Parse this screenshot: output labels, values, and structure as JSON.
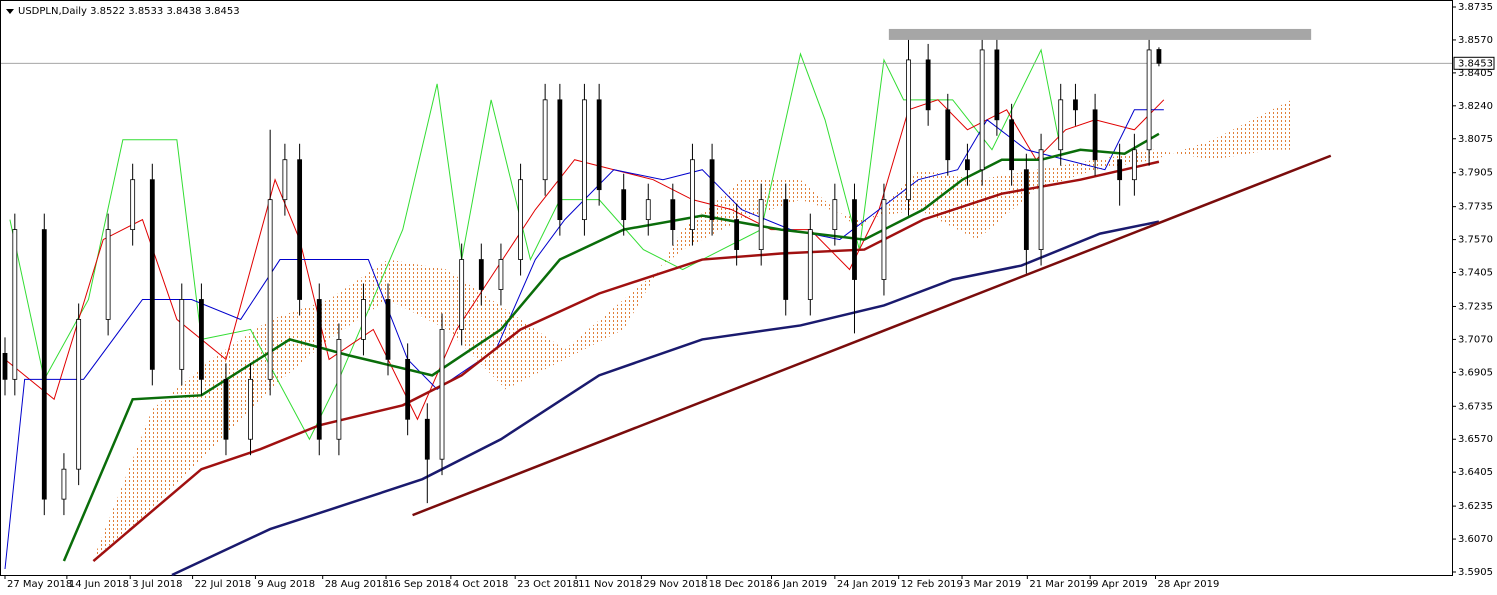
{
  "chart_data": {
    "type": "candlestick",
    "title": "USDPLN,Daily  3.8522 3.8533 3.8438 3.8453",
    "current_price": 3.8453,
    "ylim": [
      3.589,
      3.8765
    ],
    "xlim": [
      -0.5,
      295
    ],
    "yticks": [
      3.8735,
      {
        "value": 3.857,
        "label": "3.8570"
      },
      3.8405,
      {
        "value": 3.824,
        "label": "3.8240"
      },
      3.8075,
      3.7905,
      3.7735,
      {
        "value": 3.757,
        "label": "3.7570"
      },
      3.7405,
      3.7235,
      {
        "value": 3.707,
        "label": "3.7070"
      },
      3.6905,
      3.6735,
      {
        "value": 3.657,
        "label": "3.6570"
      },
      3.6405,
      3.6235,
      {
        "value": 3.607,
        "label": "3.6070"
      },
      3.5905
    ],
    "xticks": [
      {
        "value": 0,
        "label": "27 May 2018"
      },
      {
        "value": 12.6,
        "label": "14 Jun 2018"
      },
      {
        "value": 25.5,
        "label": "3 Jul 2018"
      },
      {
        "value": 38.2,
        "label": "22 Jul 2018"
      },
      {
        "value": 51,
        "label": "9 Aug 2018"
      },
      {
        "value": 64.7,
        "label": "28 Aug 2018"
      },
      {
        "value": 77.6,
        "label": "16 Sep 2018"
      },
      {
        "value": 90.8,
        "label": "4 Oct 2018"
      },
      {
        "value": 103.9,
        "label": "23 Oct 2018"
      },
      {
        "value": 116.3,
        "label": "11 Nov 2018"
      },
      {
        "value": 129.6,
        "label": "29 Nov 2018"
      },
      {
        "value": 142.9,
        "label": "18 Dec 2018"
      },
      {
        "value": 156.1,
        "label": "6 Jan 2019"
      },
      {
        "value": 169,
        "label": "24 Jan 2019"
      },
      {
        "value": 182,
        "label": "12 Feb 2019"
      },
      {
        "value": 194.9,
        "label": "3 Mar 2019"
      },
      {
        "value": 208.2,
        "label": "21 Mar 2019"
      },
      {
        "value": 221,
        "label": "9 Apr 2019"
      },
      {
        "value": 234.3,
        "label": "28 Apr 2019"
      }
    ],
    "x": [
      0,
      2,
      8,
      12,
      15,
      21,
      26,
      30,
      36,
      40,
      45,
      50,
      54,
      57,
      60,
      64,
      68,
      73,
      78,
      82,
      86,
      89,
      93,
      97,
      101,
      105,
      110,
      113,
      118,
      121,
      126,
      131,
      136,
      140,
      144,
      149,
      154,
      159,
      164,
      169,
      173,
      179,
      184,
      188,
      192,
      196,
      199,
      202,
      205,
      208,
      211,
      215,
      218,
      222,
      227,
      230,
      233,
      235
    ],
    "open": [
      3.7,
      3.687,
      3.762,
      3.627,
      3.642,
      3.717,
      3.762,
      3.787,
      3.692,
      3.727,
      3.687,
      3.657,
      3.687,
      3.777,
      3.797,
      3.727,
      3.657,
      3.707,
      3.727,
      3.697,
      3.667,
      3.647,
      3.712,
      3.747,
      3.732,
      3.747,
      3.787,
      3.827,
      3.767,
      3.827,
      3.782,
      3.767,
      3.777,
      3.762,
      3.797,
      3.767,
      3.752,
      3.777,
      3.727,
      3.762,
      3.777,
      3.737,
      3.777,
      3.847,
      3.822,
      3.797,
      3.792,
      3.852,
      3.817,
      3.792,
      3.752,
      3.802,
      3.827,
      3.822,
      3.797,
      3.787,
      3.802,
      3.8522
    ],
    "high": [
      3.708,
      3.77,
      3.77,
      3.65,
      3.725,
      3.77,
      3.795,
      3.795,
      3.735,
      3.735,
      3.695,
      3.695,
      3.812,
      3.805,
      3.805,
      3.735,
      3.715,
      3.735,
      3.735,
      3.705,
      3.675,
      3.72,
      3.755,
      3.755,
      3.755,
      3.795,
      3.835,
      3.835,
      3.835,
      3.835,
      3.79,
      3.785,
      3.785,
      3.805,
      3.805,
      3.775,
      3.785,
      3.785,
      3.77,
      3.785,
      3.785,
      3.785,
      3.858,
      3.855,
      3.83,
      3.805,
      3.858,
      3.86,
      3.825,
      3.8,
      3.81,
      3.835,
      3.835,
      3.83,
      3.805,
      3.81,
      3.86,
      3.8533
    ],
    "low": [
      3.679,
      3.679,
      3.619,
      3.619,
      3.634,
      3.709,
      3.754,
      3.684,
      3.684,
      3.679,
      3.649,
      3.649,
      3.679,
      3.769,
      3.719,
      3.649,
      3.649,
      3.699,
      3.689,
      3.659,
      3.625,
      3.639,
      3.704,
      3.724,
      3.724,
      3.739,
      3.779,
      3.759,
      3.759,
      3.774,
      3.759,
      3.759,
      3.754,
      3.754,
      3.759,
      3.744,
      3.744,
      3.719,
      3.719,
      3.754,
      3.71,
      3.729,
      3.769,
      3.814,
      3.789,
      3.784,
      3.784,
      3.809,
      3.784,
      3.74,
      3.744,
      3.794,
      3.814,
      3.789,
      3.774,
      3.779,
      3.794,
      3.8438
    ],
    "close": [
      3.687,
      3.762,
      3.627,
      3.642,
      3.717,
      3.762,
      3.787,
      3.692,
      3.727,
      3.687,
      3.657,
      3.687,
      3.777,
      3.797,
      3.727,
      3.657,
      3.707,
      3.727,
      3.697,
      3.667,
      3.647,
      3.712,
      3.747,
      3.732,
      3.747,
      3.787,
      3.827,
      3.767,
      3.827,
      3.782,
      3.767,
      3.777,
      3.762,
      3.797,
      3.767,
      3.752,
      3.777,
      3.727,
      3.762,
      3.777,
      3.737,
      3.777,
      3.847,
      3.822,
      3.797,
      3.792,
      3.852,
      3.817,
      3.792,
      3.752,
      3.802,
      3.827,
      3.822,
      3.797,
      3.787,
      3.802,
      3.852,
      3.8453
    ],
    "cloud": {
      "color": "#e0803a",
      "x": [
        18,
        30,
        42,
        54,
        66,
        78,
        90,
        102,
        114,
        126,
        138,
        150,
        162,
        174,
        186,
        198,
        210,
        222,
        234,
        246,
        258,
        262
      ],
      "a": [
        3.597,
        3.672,
        3.697,
        3.717,
        3.727,
        3.747,
        3.742,
        3.722,
        3.702,
        3.727,
        3.752,
        3.767,
        3.777,
        3.767,
        3.772,
        3.757,
        3.782,
        3.792,
        3.797,
        3.807,
        3.822,
        3.827
      ],
      "b": [
        3.597,
        3.622,
        3.652,
        3.682,
        3.707,
        3.727,
        3.712,
        3.682,
        3.697,
        3.712,
        3.762,
        3.787,
        3.787,
        3.762,
        3.792,
        3.787,
        3.792,
        3.797,
        3.802,
        3.797,
        3.802,
        3.802
      ]
    },
    "series": [
      {
        "color": "#33dd33",
        "width": 1,
        "x": [
          1,
          8,
          17,
          24,
          35,
          40,
          50,
          62,
          68,
          81,
          88,
          93,
          99,
          107,
          113,
          121,
          130,
          138,
          146,
          154,
          162,
          167,
          174,
          179,
          183,
          193,
          201,
          211,
          215
        ],
        "values": [
          3.767,
          3.687,
          3.727,
          3.807,
          3.807,
          3.707,
          3.712,
          3.657,
          3.687,
          3.762,
          3.835,
          3.747,
          3.827,
          3.747,
          3.777,
          3.777,
          3.752,
          3.742,
          3.752,
          3.762,
          3.85,
          3.817,
          3.752,
          3.847,
          3.827,
          3.827,
          3.802,
          3.852,
          3.802
        ]
      },
      {
        "color": "#e00000",
        "width": 1,
        "x": [
          0,
          10,
          20,
          28,
          35,
          45,
          55,
          60,
          66,
          75,
          84,
          92,
          100,
          108,
          116,
          124,
          132,
          140,
          148,
          156,
          164,
          172,
          178,
          184,
          190,
          196,
          204,
          210,
          216,
          222,
          230,
          236
        ],
        "values": [
          3.697,
          3.677,
          3.757,
          3.767,
          3.717,
          3.697,
          3.787,
          3.757,
          3.697,
          3.712,
          3.667,
          3.712,
          3.742,
          3.772,
          3.797,
          3.792,
          3.787,
          3.777,
          3.772,
          3.762,
          3.762,
          3.742,
          3.772,
          3.822,
          3.827,
          3.812,
          3.822,
          3.797,
          3.812,
          3.817,
          3.812,
          3.827
        ]
      },
      {
        "color": "#0000cc",
        "width": 1,
        "x": [
          0,
          4,
          16,
          28,
          38,
          48,
          56,
          74,
          82,
          88,
          100,
          108,
          114,
          124,
          134,
          142,
          150,
          160,
          170,
          178,
          186,
          194,
          200,
          208,
          216,
          224,
          230,
          236
        ],
        "values": [
          3.592,
          3.687,
          3.687,
          3.727,
          3.727,
          3.717,
          3.747,
          3.747,
          3.697,
          3.682,
          3.702,
          3.747,
          3.767,
          3.792,
          3.787,
          3.792,
          3.772,
          3.762,
          3.757,
          3.772,
          3.787,
          3.792,
          3.817,
          3.802,
          3.797,
          3.792,
          3.822,
          3.822
        ]
      },
      {
        "color": "#0a6d0a",
        "width": 2.5,
        "x": [
          12,
          26,
          40,
          58,
          70,
          87,
          101,
          113,
          126,
          142,
          158,
          175,
          187,
          195,
          203,
          211,
          219,
          228,
          235
        ],
        "values": [
          3.596,
          3.677,
          3.679,
          3.707,
          3.699,
          3.689,
          3.712,
          3.747,
          3.762,
          3.769,
          3.762,
          3.757,
          3.772,
          3.787,
          3.797,
          3.797,
          3.802,
          3.8,
          3.81
        ]
      },
      {
        "color": "#a01010",
        "width": 2.5,
        "x": [
          18,
          40,
          52,
          64,
          81,
          93,
          105,
          121,
          142,
          158,
          175,
          187,
          203,
          219,
          235
        ],
        "values": [
          3.596,
          3.642,
          3.652,
          3.664,
          3.674,
          3.689,
          3.712,
          3.73,
          3.747,
          3.75,
          3.752,
          3.767,
          3.78,
          3.787,
          3.796
        ]
      },
      {
        "color": "#1a1a6e",
        "width": 2.5,
        "x": [
          34,
          54,
          69,
          85,
          101,
          121,
          142,
          162,
          179,
          193,
          207,
          223,
          235
        ],
        "values": [
          3.589,
          3.612,
          3.624,
          3.637,
          3.657,
          3.689,
          3.707,
          3.714,
          3.724,
          3.737,
          3.744,
          3.76,
          3.766
        ]
      }
    ],
    "trendline": {
      "color": "#7a0c0c",
      "x": [
        83,
        270
      ],
      "values": [
        3.619,
        3.799
      ]
    },
    "zone": {
      "color": "#a6a6a6",
      "x": [
        180,
        266
      ],
      "values": [
        3.857,
        3.8625
      ]
    }
  }
}
